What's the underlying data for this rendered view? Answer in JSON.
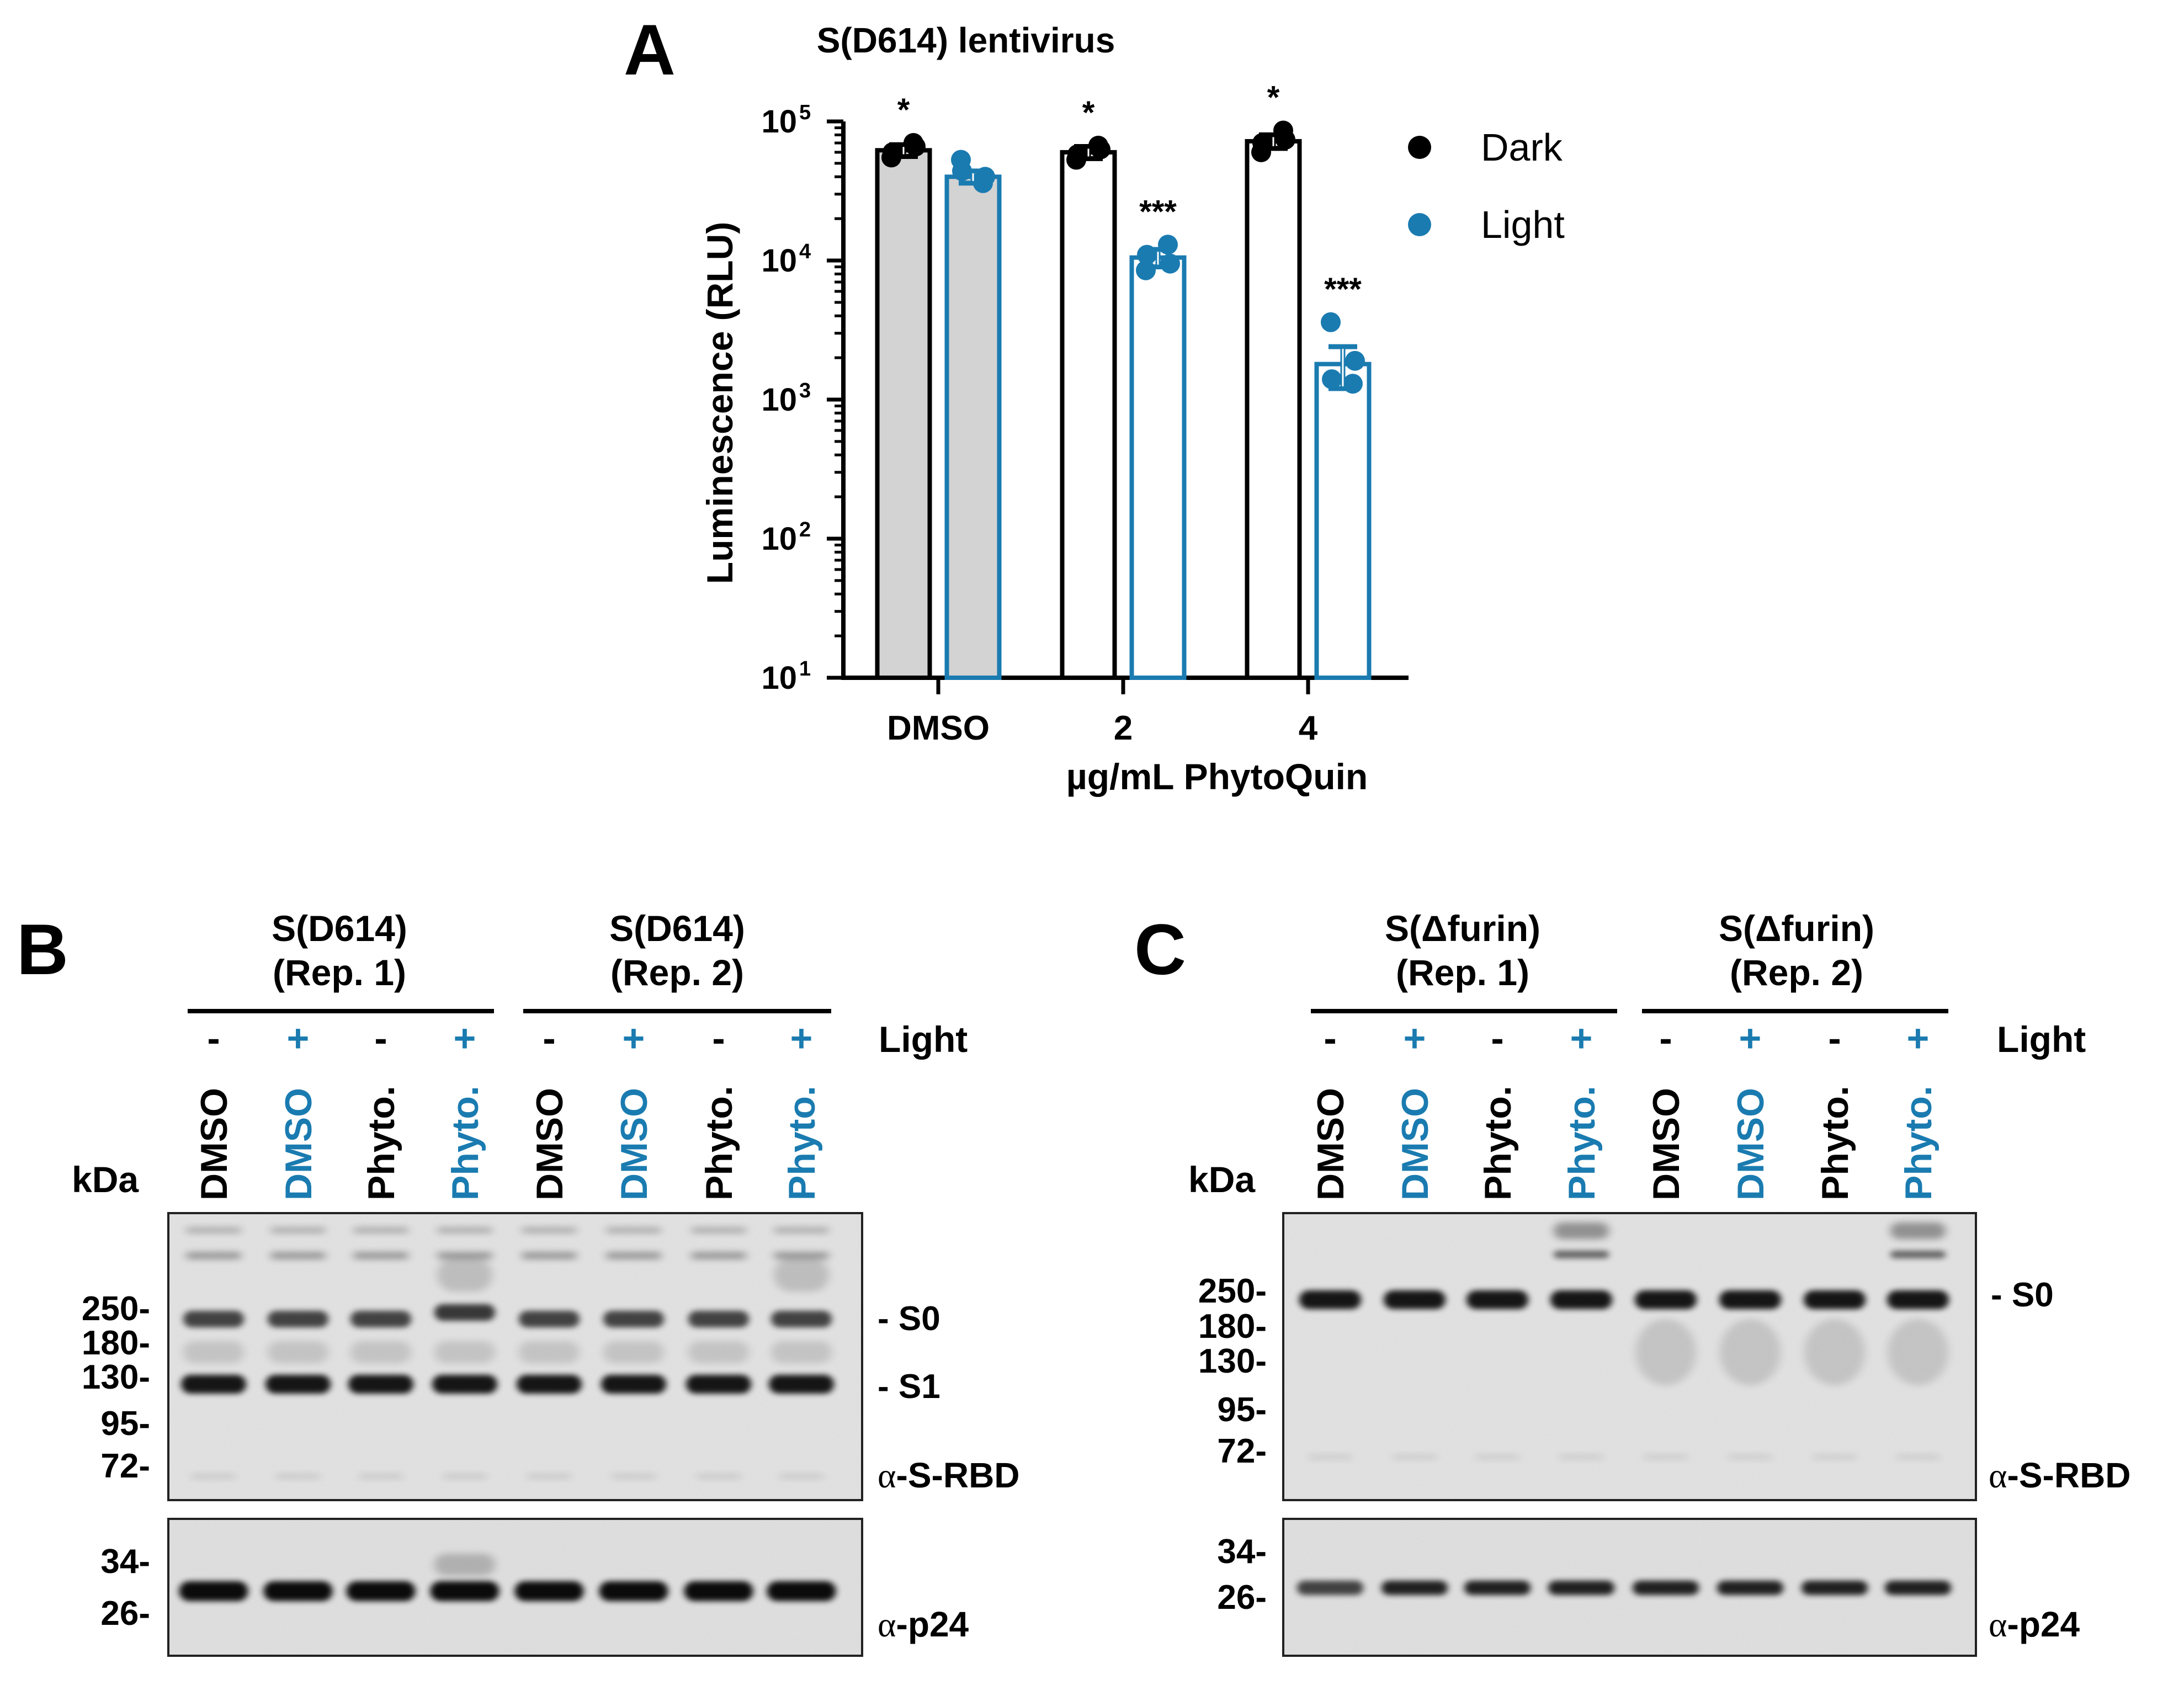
{
  "panels": {
    "A": {
      "letter": "A",
      "chart_data": {
        "type": "bar",
        "title": "S(D614) lentivirus",
        "xlabel": "µg/mL PhytoQuin",
        "ylabel": "Luminescence (RLU)",
        "yscale": "log",
        "ylim": [
          10,
          100000
        ],
        "yticks": [
          {
            "base": "10",
            "exp": "1",
            "value": 10
          },
          {
            "base": "10",
            "exp": "2",
            "value": 100
          },
          {
            "base": "10",
            "exp": "3",
            "value": 1000
          },
          {
            "base": "10",
            "exp": "4",
            "value": 10000
          },
          {
            "base": "10",
            "exp": "5",
            "value": 100000
          }
        ],
        "categories": [
          "DMSO",
          "2",
          "4"
        ],
        "series": [
          {
            "name": "Dark",
            "color": "#000000",
            "values": [
              62000,
              60000,
              72000
            ],
            "sem": [
              6000,
              6000,
              8000
            ],
            "points": [
              [
                55000,
                70000,
                60000,
                66000
              ],
              [
                53000,
                67000,
                58000,
                63000
              ],
              [
                60000,
                86000,
                70000,
                74000
              ]
            ],
            "significance": [
              "*",
              "*",
              "*"
            ]
          },
          {
            "name": "Light",
            "color": "#1a7bb0",
            "values": [
              40000,
              10500,
              1800
            ],
            "sem": [
              4000,
              1500,
              600
            ],
            "points": [
              [
                53000,
                36000,
                44000,
                40000
              ],
              [
                8500,
                13000,
                11000,
                9500
              ],
              [
                3600,
                1300,
                1400,
                1900
              ]
            ],
            "significance": [
              "",
              "***",
              "***"
            ]
          }
        ],
        "fill_first_group": "#d3d3d3",
        "legend": "right"
      }
    },
    "B": {
      "letter": "B",
      "groups": [
        {
          "line1": "S(D614)",
          "line2": "(Rep. 1)"
        },
        {
          "line1": "S(D614)",
          "line2": "(Rep. 2)"
        }
      ],
      "light_label": "Light",
      "lanes": [
        {
          "sign": "-",
          "label": "DMSO",
          "color": "#000000"
        },
        {
          "sign": "+",
          "label": "DMSO",
          "color": "#1a7bb0"
        },
        {
          "sign": "-",
          "label": "Phyto.",
          "color": "#000000"
        },
        {
          "sign": "+",
          "label": "Phyto.",
          "color": "#1a7bb0"
        },
        {
          "sign": "-",
          "label": "DMSO",
          "color": "#000000"
        },
        {
          "sign": "+",
          "label": "DMSO",
          "color": "#1a7bb0"
        },
        {
          "sign": "-",
          "label": "Phyto.",
          "color": "#000000"
        },
        {
          "sign": "+",
          "label": "Phyto.",
          "color": "#1a7bb0"
        }
      ],
      "kda_label": "kDa",
      "top_markers": [
        "250-",
        "180-",
        "130-",
        "95-",
        "72-"
      ],
      "bottom_markers": [
        "34-",
        "26-"
      ],
      "band_labels": [
        "- S0",
        "- S1"
      ],
      "top_antibody_prefix": "α",
      "top_antibody_name": "-S-RBD",
      "bottom_antibody_prefix": "α",
      "bottom_antibody_name": "-p24"
    },
    "C": {
      "letter": "C",
      "groups": [
        {
          "line1": "S(Δfurin)",
          "line2": "(Rep. 1)"
        },
        {
          "line1": "S(Δfurin)",
          "line2": "(Rep. 2)"
        }
      ],
      "light_label": "Light",
      "lanes": [
        {
          "sign": "-",
          "label": "DMSO",
          "color": "#000000"
        },
        {
          "sign": "+",
          "label": "DMSO",
          "color": "#1a7bb0"
        },
        {
          "sign": "-",
          "label": "Phyto.",
          "color": "#000000"
        },
        {
          "sign": "+",
          "label": "Phyto.",
          "color": "#1a7bb0"
        },
        {
          "sign": "-",
          "label": "DMSO",
          "color": "#000000"
        },
        {
          "sign": "+",
          "label": "DMSO",
          "color": "#1a7bb0"
        },
        {
          "sign": "-",
          "label": "Phyto.",
          "color": "#000000"
        },
        {
          "sign": "+",
          "label": "Phyto.",
          "color": "#1a7bb0"
        }
      ],
      "kda_label": "kDa",
      "top_markers": [
        "250-",
        "180-",
        "130-",
        "95-",
        "72-"
      ],
      "bottom_markers": [
        "34-",
        "26-"
      ],
      "band_labels": [
        "- S0"
      ],
      "top_antibody_prefix": "α",
      "top_antibody_name": "-S-RBD",
      "bottom_antibody_prefix": "α",
      "bottom_antibody_name": "-p24"
    }
  }
}
